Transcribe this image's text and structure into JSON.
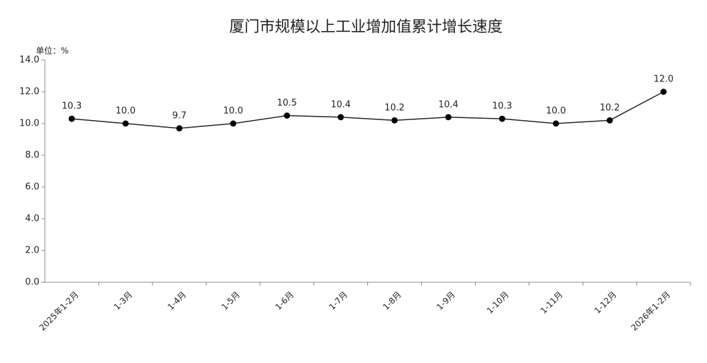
{
  "chart_data": {
    "type": "line",
    "title": "厦门市规模以上工业增加值累计增长速度",
    "unit_label": "单位：%",
    "categories": [
      "2025年1-2月",
      "1-3月",
      "1-4月",
      "1-5月",
      "1-6月",
      "1-7月",
      "1-8月",
      "1-9月",
      "1-10月",
      "1-11月",
      "1-12月",
      "2026年1-2月"
    ],
    "values": [
      10.3,
      10,
      9.7,
      10,
      10.5,
      10.4,
      10.2,
      10.4,
      10.3,
      10,
      10.2,
      12
    ],
    "value_labels": [
      "10.3",
      "10.0",
      "9.7",
      "10.0",
      "10.5",
      "10.4",
      "10.2",
      "10.4",
      "10.3",
      "10.0",
      "10.2",
      "12.0"
    ],
    "color": "#222222",
    "ylim": [
      0,
      14
    ],
    "yticks": [
      {
        "value": 0,
        "label": "0.0"
      },
      {
        "value": 2,
        "label": "2.0"
      },
      {
        "value": 4,
        "label": "4.0"
      },
      {
        "value": 6,
        "label": "6.0"
      },
      {
        "value": 8,
        "label": "8.0"
      },
      {
        "value": 10,
        "label": "10.0"
      },
      {
        "value": 12,
        "label": "12.0"
      },
      {
        "value": 14,
        "label": "14.0"
      }
    ],
    "grid": false
  }
}
